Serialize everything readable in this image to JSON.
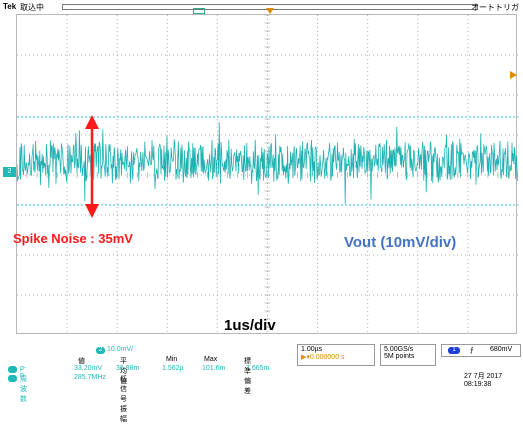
{
  "header": {
    "brand": "Tek",
    "acquisition": "取込中",
    "trigger_mode": "オートトリガ"
  },
  "channel_marker": "2",
  "annotations": {
    "spike_noise": "Spike Noise : 35mV",
    "vout": "Vout (10mV/div)",
    "timebase": "1us/div"
  },
  "channel_scale": {
    "channel": "2",
    "value": "10.0mV/"
  },
  "measurements": {
    "headers": [
      "値",
      "平均値",
      "Min",
      "Max",
      "標準偏差"
    ],
    "rows": [
      {
        "channel": "2",
        "label": "p-p",
        "values": [
          "33.20mV",
          "36.98m",
          "1.562µ",
          "101.6m",
          "7.665m"
        ]
      },
      {
        "channel": "2",
        "label": "周波数",
        "values": [
          "285.7MHz",
          "低信号振幅"
        ]
      }
    ]
  },
  "horizontal": {
    "scale": "1.00µs",
    "delay": "▶▾0.000000 s"
  },
  "sampling": {
    "rate": "5.00GS/s",
    "record": "5M points"
  },
  "trigger": {
    "channel": "1",
    "slope": "⨍",
    "level": "680mV"
  },
  "datetime": {
    "date": "27 7月 2017",
    "time": "08:19:38"
  },
  "colors": {
    "ch2": "#21b8b8",
    "noise_arrow": "#ff1a1a",
    "vout_label": "#4472c4"
  }
}
